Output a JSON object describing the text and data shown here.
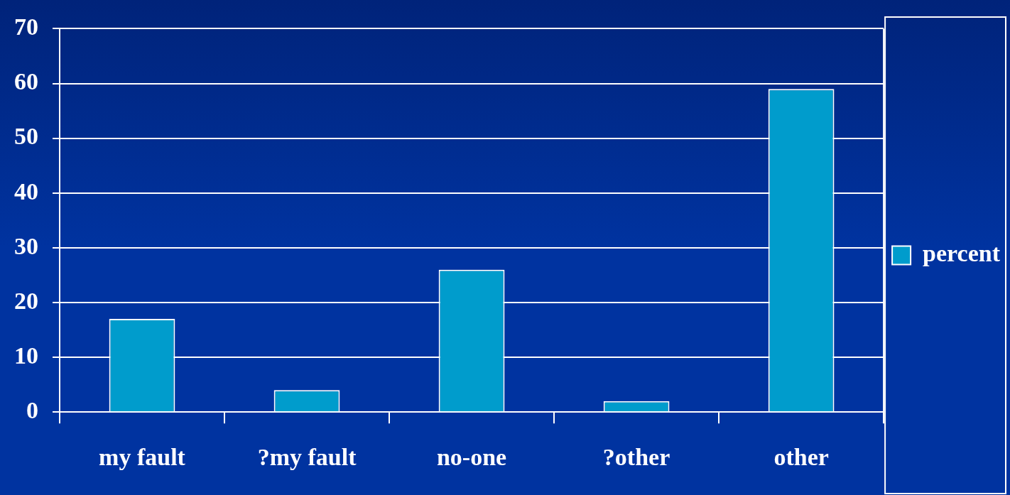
{
  "chart_data": {
    "type": "bar",
    "categories": [
      "my fault",
      "?my fault",
      "no-one",
      "?other",
      "other"
    ],
    "series": [
      {
        "name": "percent",
        "color": "#009ccc",
        "values": [
          17,
          4,
          26,
          2,
          59
        ]
      }
    ],
    "ylim": [
      0,
      70
    ],
    "yticks": [
      0,
      10,
      20,
      30,
      40,
      50,
      60,
      70
    ],
    "grid": "y",
    "legend": "right"
  }
}
